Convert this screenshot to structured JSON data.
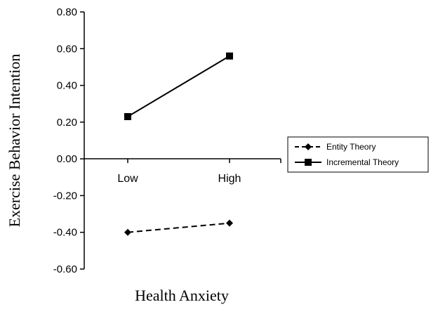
{
  "chart_data": {
    "type": "line",
    "title": "",
    "xlabel": "Health Anxiety",
    "ylabel": "Exercise Behavior Intention",
    "categories": [
      "Low",
      "High"
    ],
    "ylim": [
      -0.6,
      0.8
    ],
    "yticks": [
      0.8,
      0.6,
      0.4,
      0.2,
      0.0,
      -0.2,
      -0.4,
      -0.6
    ],
    "ytick_labels": [
      "0.80",
      "0.60",
      "0.40",
      "0.20",
      "0.00",
      "-0.20",
      "-0.40",
      "-0.60"
    ],
    "grid": false,
    "legend_position": "right",
    "series": [
      {
        "name": "Entity Theory",
        "values": [
          -0.4,
          -0.35
        ],
        "marker": "diamond",
        "line": "dashed",
        "color": "#000000"
      },
      {
        "name": "Incremental Theory",
        "values": [
          0.23,
          0.56
        ],
        "marker": "square",
        "line": "solid",
        "color": "#000000"
      }
    ]
  }
}
